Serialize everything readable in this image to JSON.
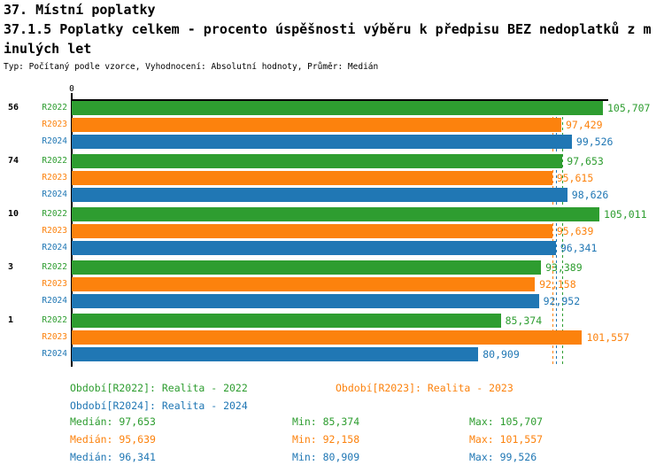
{
  "header": {
    "title": "37. Místní poplatky",
    "subtitle_line1": "37.1.5 Poplatky celkem - procento úspěšnosti výběru k předpisu BEZ nedoplatků z m",
    "subtitle_line2": "inulých let",
    "meta": "Typ: Počítaný podle vzorce, Vyhodnocení: Absolutní hodnoty, Průměr: Medián"
  },
  "colors": {
    "green": "#2E9D30",
    "orange": "#FC820D",
    "blue": "#2077B4",
    "axis": "#000000"
  },
  "chart_data": {
    "type": "bar",
    "orientation": "horizontal",
    "title": "37.1.5 Poplatky celkem - procento úspěšnosti výběru k předpisu BEZ nedoplatků z minulých let",
    "axis_origin_label": "0",
    "xlim": [
      0,
      106800
    ],
    "grid": false,
    "legend_position": "bottom",
    "categories": [
      "56",
      "74",
      "10",
      "3",
      "1"
    ],
    "series": [
      {
        "name": "R2022",
        "period": "Realita - 2022",
        "color_key": "green",
        "values": [
          105707,
          97653,
          105011,
          93389,
          85374
        ]
      },
      {
        "name": "R2023",
        "period": "Realita - 2023",
        "color_key": "orange",
        "values": [
          97429,
          95615,
          95639,
          92158,
          101557
        ]
      },
      {
        "name": "R2024",
        "period": "Realita - 2024",
        "color_key": "blue",
        "values": [
          99526,
          98626,
          96341,
          92952,
          80909
        ]
      }
    ],
    "bar_value_labels": [
      [
        "105,707",
        "97,429",
        "99,526"
      ],
      [
        "97,653",
        "95,615",
        "98,626"
      ],
      [
        "105,011",
        "95,639",
        "96,341"
      ],
      [
        "93,389",
        "92,158",
        "92,952"
      ],
      [
        "85,374",
        "101,557",
        "80,909"
      ]
    ],
    "median_lines": [
      {
        "series": "R2022",
        "color_key": "green",
        "value": 97653
      },
      {
        "series": "R2023",
        "color_key": "orange",
        "value": 95639
      },
      {
        "series": "R2024",
        "color_key": "blue",
        "value": 96341
      }
    ]
  },
  "legend": [
    {
      "text": "Období[R2022]: Realita - 2022",
      "color_key": "green"
    },
    {
      "text": "Období[R2023]: Realita - 2023",
      "color_key": "orange"
    },
    {
      "text": "Období[R2024]: Realita - 2024",
      "color_key": "blue"
    }
  ],
  "stats": [
    {
      "median": "Medián: 97,653",
      "min": "Min: 85,374",
      "max": "Max: 105,707",
      "color_key": "green"
    },
    {
      "median": "Medián: 95,639",
      "min": "Min: 92,158",
      "max": "Max: 101,557",
      "color_key": "orange"
    },
    {
      "median": "Medián: 96,341",
      "min": "Min: 80,909",
      "max": "Max: 99,526",
      "color_key": "blue"
    }
  ]
}
